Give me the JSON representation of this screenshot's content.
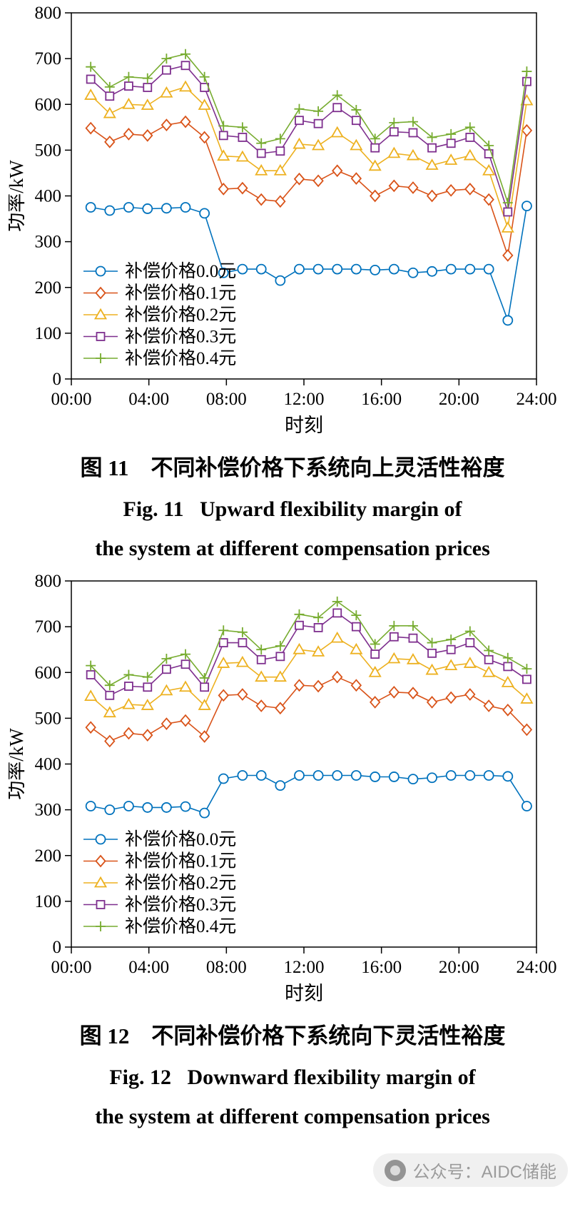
{
  "watermark": {
    "text": "公众号：AIDC储能"
  },
  "figures": [
    {
      "caption_zh": "图 11　不同补偿价格下系统向上灵活性裕度",
      "caption_en_line1": "Fig. 11   Upward flexibility margin of",
      "caption_en_line2": "the system at different compensation prices"
    },
    {
      "caption_zh": "图 12　不同补偿价格下系统向下灵活性裕度",
      "caption_en_line1": "Fig. 12   Downward flexibility margin of",
      "caption_en_line2": "the system at different compensation prices"
    }
  ],
  "chart_data": [
    {
      "type": "line",
      "title": "",
      "xlabel": "时刻",
      "ylabel": "功率/kW",
      "xlim": [
        0,
        24
      ],
      "ylim": [
        0,
        800
      ],
      "grid": false,
      "legend_position": "inside-lower-left",
      "xticks": [
        0,
        4,
        8,
        12,
        16,
        20,
        24
      ],
      "xtick_labels": [
        "00:00",
        "04:00",
        "08:00",
        "12:00",
        "16:00",
        "20:00",
        "24:00"
      ],
      "yticks": [
        0,
        100,
        200,
        300,
        400,
        500,
        600,
        700,
        800
      ],
      "x": [
        1,
        1.98,
        2.96,
        3.93,
        4.91,
        5.89,
        6.87,
        7.85,
        8.83,
        9.8,
        10.78,
        11.76,
        12.74,
        13.72,
        14.7,
        15.67,
        16.65,
        17.63,
        18.61,
        19.59,
        20.57,
        21.54,
        22.52,
        23.5
      ],
      "series": [
        {
          "name": "补偿价格0.0元",
          "color": "#0072BD",
          "marker": "circle",
          "values": [
            375,
            368,
            375,
            372,
            373,
            375,
            362,
            232,
            240,
            240,
            215,
            240,
            240,
            240,
            240,
            238,
            240,
            232,
            235,
            240,
            240,
            240,
            128,
            378
          ]
        },
        {
          "name": "补偿价格0.1元",
          "color": "#D95319",
          "marker": "diamond",
          "values": [
            548,
            518,
            535,
            532,
            555,
            562,
            528,
            415,
            417,
            392,
            388,
            437,
            433,
            455,
            438,
            400,
            422,
            418,
            400,
            412,
            415,
            392,
            270,
            543
          ]
        },
        {
          "name": "补偿价格0.2元",
          "color": "#EDB120",
          "marker": "triangle",
          "values": [
            620,
            580,
            600,
            598,
            625,
            638,
            598,
            487,
            485,
            455,
            455,
            513,
            510,
            538,
            510,
            465,
            493,
            488,
            467,
            478,
            488,
            455,
            330,
            608
          ]
        },
        {
          "name": "补偿价格0.3元",
          "color": "#7E2F8E",
          "marker": "square",
          "values": [
            655,
            618,
            640,
            637,
            675,
            685,
            637,
            532,
            528,
            493,
            498,
            565,
            558,
            593,
            565,
            505,
            540,
            538,
            505,
            515,
            528,
            492,
            365,
            650
          ]
        },
        {
          "name": "补偿价格0.4元",
          "color": "#77AC30",
          "marker": "plus",
          "values": [
            682,
            638,
            660,
            657,
            700,
            710,
            660,
            553,
            550,
            515,
            525,
            590,
            585,
            620,
            588,
            525,
            560,
            562,
            528,
            535,
            550,
            510,
            385,
            672
          ]
        }
      ]
    },
    {
      "type": "line",
      "title": "",
      "xlabel": "时刻",
      "ylabel": "功率/kW",
      "xlim": [
        0,
        24
      ],
      "ylim": [
        0,
        800
      ],
      "grid": false,
      "legend_position": "inside-lower-left",
      "xticks": [
        0,
        4,
        8,
        12,
        16,
        20,
        24
      ],
      "xtick_labels": [
        "00:00",
        "04:00",
        "08:00",
        "12:00",
        "16:00",
        "20:00",
        "24:00"
      ],
      "yticks": [
        0,
        100,
        200,
        300,
        400,
        500,
        600,
        700,
        800
      ],
      "x": [
        1,
        1.98,
        2.96,
        3.93,
        4.91,
        5.89,
        6.87,
        7.85,
        8.83,
        9.8,
        10.78,
        11.76,
        12.74,
        13.72,
        14.7,
        15.67,
        16.65,
        17.63,
        18.61,
        19.59,
        20.57,
        21.54,
        22.52,
        23.5
      ],
      "series": [
        {
          "name": "补偿价格0.0元",
          "color": "#0072BD",
          "marker": "circle",
          "values": [
            308,
            300,
            308,
            305,
            305,
            307,
            293,
            368,
            375,
            375,
            353,
            375,
            375,
            375,
            375,
            372,
            372,
            367,
            370,
            375,
            375,
            375,
            373,
            308
          ]
        },
        {
          "name": "补偿价格0.1元",
          "color": "#D95319",
          "marker": "diamond",
          "values": [
            480,
            450,
            467,
            463,
            488,
            495,
            460,
            550,
            552,
            527,
            522,
            572,
            570,
            590,
            572,
            535,
            557,
            555,
            535,
            545,
            552,
            527,
            518,
            475
          ]
        },
        {
          "name": "补偿价格0.2元",
          "color": "#EDB120",
          "marker": "triangle",
          "values": [
            548,
            512,
            530,
            528,
            560,
            568,
            528,
            620,
            622,
            590,
            590,
            650,
            645,
            675,
            650,
            600,
            630,
            628,
            605,
            615,
            620,
            600,
            578,
            542
          ]
        },
        {
          "name": "补偿价格0.3元",
          "color": "#7E2F8E",
          "marker": "square",
          "values": [
            595,
            550,
            570,
            568,
            607,
            618,
            568,
            665,
            665,
            628,
            635,
            703,
            698,
            730,
            700,
            640,
            678,
            675,
            642,
            650,
            665,
            628,
            613,
            585
          ]
        },
        {
          "name": "补偿价格0.4元",
          "color": "#77AC30",
          "marker": "plus",
          "values": [
            615,
            572,
            595,
            590,
            630,
            640,
            588,
            692,
            688,
            650,
            658,
            727,
            720,
            755,
            725,
            662,
            702,
            702,
            665,
            672,
            690,
            648,
            632,
            608
          ]
        }
      ]
    }
  ]
}
